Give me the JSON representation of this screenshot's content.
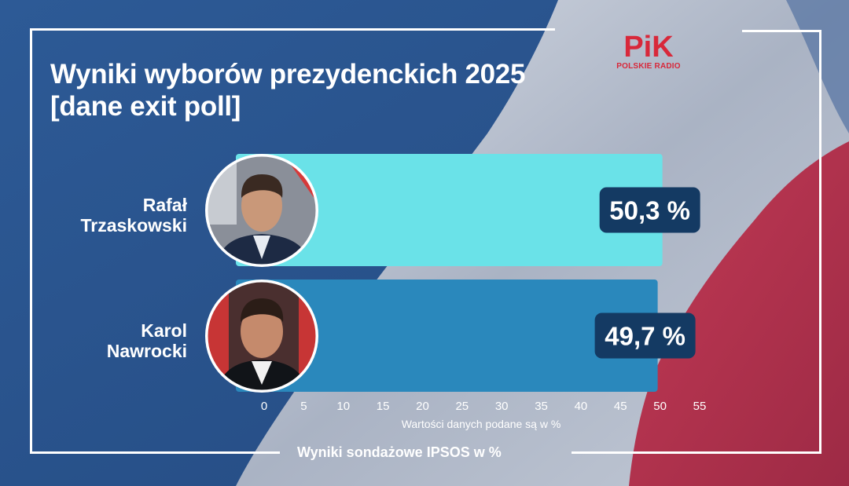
{
  "header": {
    "title_line1": "Wyniki wyborów prezydenckich 2025",
    "title_line2": "[dane exit poll]"
  },
  "logo": {
    "text": "PiK",
    "subtitle": "POLSKIE RADIO",
    "color": "#d8283a"
  },
  "candidates": [
    {
      "first_name": "Rafał",
      "last_name": "Trzaskowski",
      "avatar_icon": "candidate-photo"
    },
    {
      "first_name": "Karol",
      "last_name": "Nawrocki",
      "avatar_icon": "candidate-photo"
    }
  ],
  "chart_data": {
    "type": "bar",
    "orientation": "horizontal",
    "categories": [
      "Rafał Trzaskowski",
      "Karol Nawrocki"
    ],
    "values": [
      50.3,
      49.7
    ],
    "value_labels": [
      "50,3 %",
      "49,7 %"
    ],
    "xlim": [
      0,
      55
    ],
    "x_ticks": [
      0,
      5,
      10,
      15,
      20,
      25,
      30,
      35,
      40,
      45,
      50,
      55
    ],
    "xlabel": "Wartości danych podane są w %",
    "colors": [
      "#6ae2e8",
      "#2a88bc"
    ],
    "label_badge_color": "#143a63",
    "grid": false
  },
  "footer": {
    "source": "Wyniki sondażowe IPSOS w %"
  }
}
